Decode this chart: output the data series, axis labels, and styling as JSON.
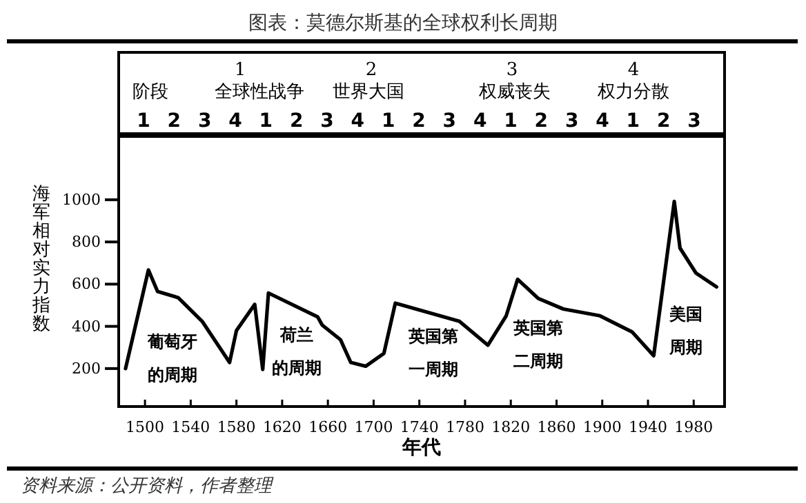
{
  "chart_data": {
    "type": "line",
    "title": "图表：莫德尔斯基的全球权利长周期",
    "xlabel": "年代",
    "ylabel": "海军相对实力指数",
    "x": [
      1483,
      1503,
      1511,
      1529,
      1550,
      1574,
      1580,
      1596,
      1603,
      1608,
      1651,
      1655,
      1671,
      1680,
      1693,
      1709,
      1719,
      1775,
      1800,
      1816,
      1826,
      1844,
      1866,
      1898,
      1926,
      1945,
      1963,
      1968,
      1982,
      2000
    ],
    "series": [
      {
        "color": "#000000",
        "values": [
          200,
          667,
          565,
          536,
          424,
          229,
          380,
          504,
          196,
          558,
          445,
          406,
          337,
          229,
          211,
          272,
          510,
          424,
          311,
          450,
          623,
          532,
          482,
          450,
          374,
          261,
          992,
          771,
          652,
          587
        ]
      }
    ],
    "xlim": [
      1477,
      2007
    ],
    "ylim": [
      20,
      1300
    ],
    "xticks": [
      1500,
      1540,
      1580,
      1620,
      1660,
      1700,
      1740,
      1780,
      1820,
      1860,
      1900,
      1940,
      1980
    ],
    "yticks": [
      200,
      400,
      600,
      800,
      1000
    ],
    "grid": false,
    "marker": "none",
    "line_style": "solid",
    "annotations": [
      "阶段",
      "1",
      "全球性战争",
      "2",
      "世界大国",
      "3",
      "权威丧失",
      "4",
      "权力分散",
      "1 2 3 4 1 2 3 4 1 2 3 4 1 2 3 4 1 2 3",
      "葡萄牙的周期",
      "荷兰的周期",
      "英国第一周期",
      "英国第二周期",
      "美国周期",
      "资料来源：公开资料，作者整理"
    ]
  }
}
